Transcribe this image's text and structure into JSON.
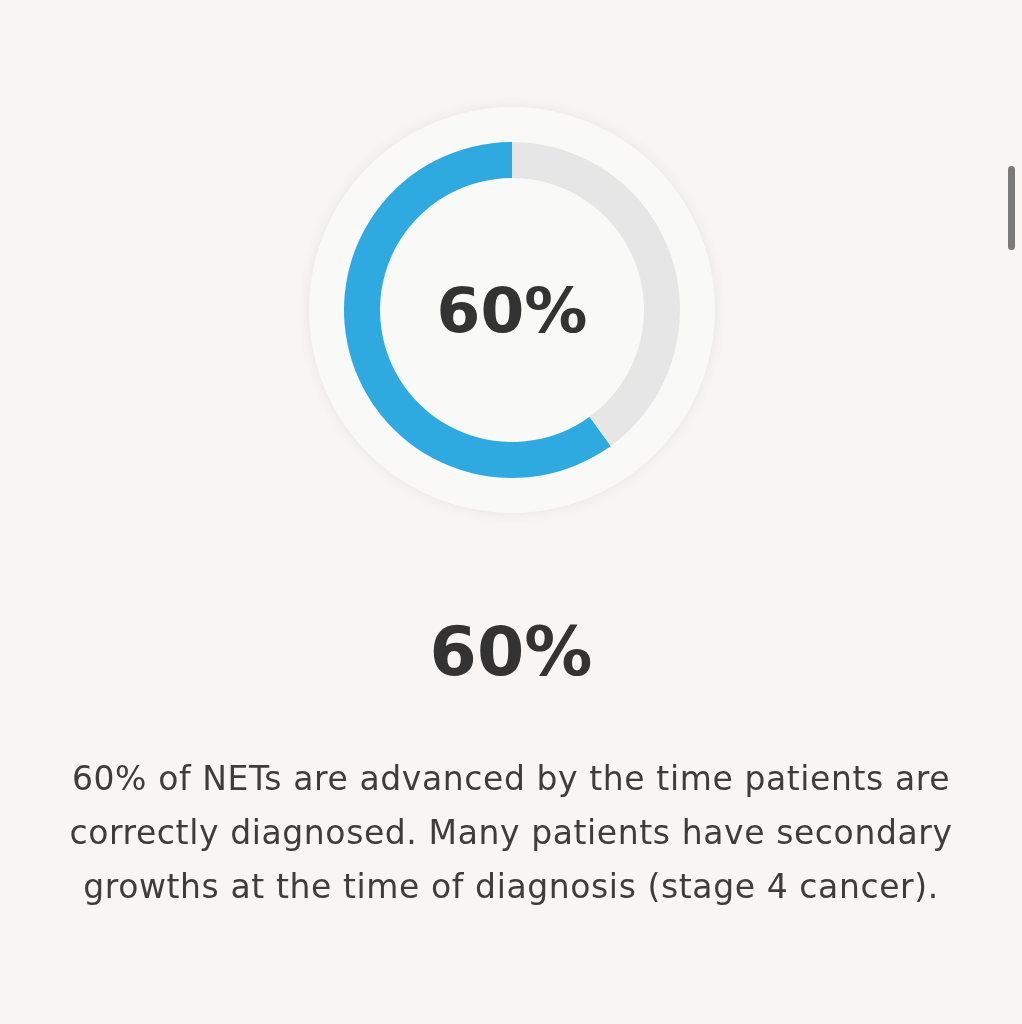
{
  "chart_data": {
    "type": "donut",
    "title": "60%",
    "categories": [
      null,
      null
    ],
    "values": [
      60,
      40
    ],
    "colors": [
      "#2eaae1",
      "#e6e6e6"
    ],
    "value_labels": [
      "60%",
      null
    ],
    "annotations": [
      "60% of NETs are advanced by the time patients are correctly diagnosed. Many patients have secondary growths at the time of diagnosis (stage 4 cancer)."
    ]
  }
}
